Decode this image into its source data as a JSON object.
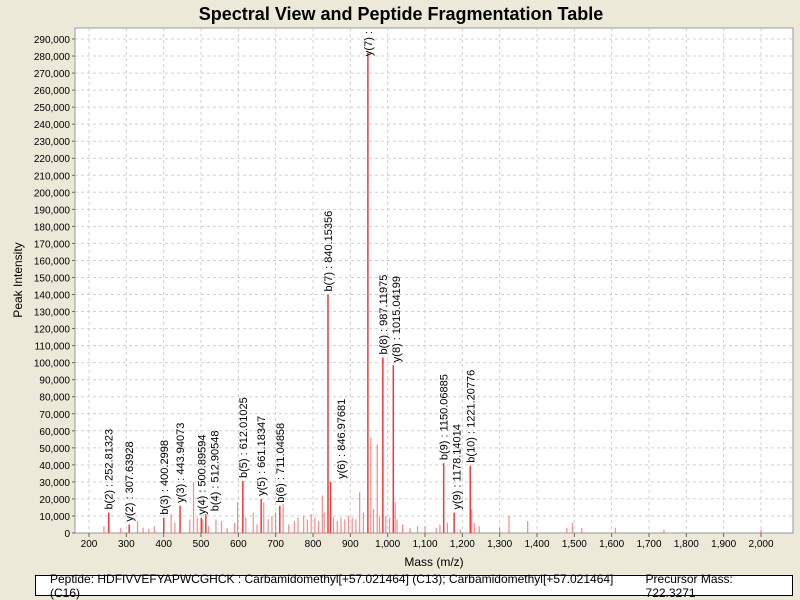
{
  "footer": {
    "peptide": "Peptide: HDFIVVEFYAPWCGHCK : Carbamidomethyl[+57.021464] (C13); Carbamidomethyl[+57.021464] (C16)",
    "precursor": "Precursor Mass: 722.3271"
  },
  "chart_data": {
    "type": "bar",
    "title": "Spectral View and Peptide Fragmentation Table",
    "xlabel": "Mass (m/z)",
    "ylabel": "Peak Intensity",
    "xlim": [
      160,
      2085
    ],
    "ylim": [
      0,
      296000
    ],
    "xticks": [
      200,
      300,
      400,
      500,
      600,
      700,
      800,
      900,
      1000,
      1100,
      1200,
      1300,
      1400,
      1500,
      1600,
      1700,
      1800,
      1900,
      2000
    ],
    "xtick_labels": [
      "200",
      "300",
      "400",
      "500",
      "600",
      "700",
      "800",
      "900",
      "1,000",
      "1,100",
      "1,200",
      "1,300",
      "1,400",
      "1,500",
      "1,600",
      "1,700",
      "1,800",
      "1,900",
      "2,000"
    ],
    "yticks": [
      0,
      10000,
      20000,
      30000,
      40000,
      50000,
      60000,
      70000,
      80000,
      90000,
      100000,
      110000,
      120000,
      130000,
      140000,
      150000,
      160000,
      170000,
      180000,
      190000,
      200000,
      210000,
      220000,
      230000,
      240000,
      250000,
      260000,
      270000,
      280000,
      290000
    ],
    "ytick_labels": [
      "0",
      "10,000",
      "20,000",
      "30,000",
      "40,000",
      "50,000",
      "60,000",
      "70,000",
      "80,000",
      "90,000",
      "100,000",
      "110,000",
      "120,000",
      "130,000",
      "140,000",
      "150,000",
      "160,000",
      "170,000",
      "180,000",
      "190,000",
      "200,000",
      "210,000",
      "220,000",
      "230,000",
      "240,000",
      "250,000",
      "260,000",
      "270,000",
      "280,000",
      "290,000"
    ],
    "grid": true,
    "colors": {
      "peak": "#FF5555",
      "annotated_peak": "#FF3333",
      "background": "#ECE9D8",
      "plot": "#FFFFFF"
    },
    "annotated_peaks": [
      {
        "mz": 252.81,
        "intensity": 12000,
        "label": "b(2) : 252.81323"
      },
      {
        "mz": 307.64,
        "intensity": 5000,
        "label": "y(2) : 307.63928"
      },
      {
        "mz": 400.3,
        "intensity": 9000,
        "label": "b(3) : 400.2998"
      },
      {
        "mz": 443.94,
        "intensity": 16000,
        "label": "y(3) : 443.94073"
      },
      {
        "mz": 500.9,
        "intensity": 9000,
        "label": "y(4) : 500.89594"
      },
      {
        "mz": 512.9,
        "intensity": 11000,
        "label": "b(4) : 512.90548"
      },
      {
        "mz": 612.01,
        "intensity": 30500,
        "label": "b(5) : 612.01025"
      },
      {
        "mz": 661.18,
        "intensity": 20000,
        "label": "y(5) : 661.18347"
      },
      {
        "mz": 711.05,
        "intensity": 16000,
        "label": "b(6) : 711.04858"
      },
      {
        "mz": 840.15,
        "intensity": 140000,
        "label": "b(7) : 840.15356"
      },
      {
        "mz": 846.98,
        "intensity": 30000,
        "label": "y(6) : 846.97681"
      },
      {
        "mz": 947.0,
        "intensity": 282000,
        "label": "y(7) :"
      },
      {
        "mz": 987.12,
        "intensity": 103000,
        "label": "b(8) : 987.11975"
      },
      {
        "mz": 1015.04,
        "intensity": 98500,
        "label": "y(8) : 1015.04199"
      },
      {
        "mz": 1150.07,
        "intensity": 41000,
        "label": "b(9) : 1150.06885"
      },
      {
        "mz": 1178.14,
        "intensity": 12000,
        "label": "y(9) : 1178.14014"
      },
      {
        "mz": 1221.21,
        "intensity": 39500,
        "label": "b(10) : 1221.20776"
      }
    ],
    "peaks": [
      [
        240,
        4000
      ],
      [
        285,
        3000
      ],
      [
        330,
        7000
      ],
      [
        345,
        3000
      ],
      [
        360,
        2500
      ],
      [
        375,
        4000
      ],
      [
        420,
        11000
      ],
      [
        430,
        6000
      ],
      [
        470,
        8000
      ],
      [
        480,
        30000
      ],
      [
        490,
        9000
      ],
      [
        505,
        8000
      ],
      [
        520,
        4000
      ],
      [
        540,
        8000
      ],
      [
        555,
        7000
      ],
      [
        570,
        3000
      ],
      [
        590,
        6000
      ],
      [
        598,
        18000
      ],
      [
        620,
        9000
      ],
      [
        640,
        12000
      ],
      [
        650,
        5000
      ],
      [
        668,
        18000
      ],
      [
        680,
        8000
      ],
      [
        690,
        10000
      ],
      [
        700,
        12000
      ],
      [
        720,
        17000
      ],
      [
        735,
        5000
      ],
      [
        750,
        7000
      ],
      [
        760,
        9000
      ],
      [
        775,
        10000
      ],
      [
        785,
        8000
      ],
      [
        795,
        11000
      ],
      [
        805,
        9000
      ],
      [
        815,
        7000
      ],
      [
        825,
        22000
      ],
      [
        830,
        12000
      ],
      [
        855,
        9000
      ],
      [
        865,
        7000
      ],
      [
        875,
        9000
      ],
      [
        885,
        8000
      ],
      [
        895,
        10000
      ],
      [
        905,
        9000
      ],
      [
        915,
        8000
      ],
      [
        925,
        24000
      ],
      [
        935,
        12000
      ],
      [
        955,
        56000
      ],
      [
        962,
        14000
      ],
      [
        972,
        52000
      ],
      [
        978,
        10000
      ],
      [
        995,
        10000
      ],
      [
        1005,
        9000
      ],
      [
        1020,
        18000
      ],
      [
        1025,
        8000
      ],
      [
        1040,
        5000
      ],
      [
        1060,
        3000
      ],
      [
        1080,
        4000
      ],
      [
        1100,
        4000
      ],
      [
        1130,
        3000
      ],
      [
        1140,
        5000
      ],
      [
        1160,
        6000
      ],
      [
        1195,
        2000
      ],
      [
        1225,
        14000
      ],
      [
        1232,
        6000
      ],
      [
        1245,
        4000
      ],
      [
        1300,
        3000
      ],
      [
        1325,
        10000
      ],
      [
        1375,
        7000
      ],
      [
        1480,
        3000
      ],
      [
        1495,
        6000
      ],
      [
        1520,
        3000
      ],
      [
        1610,
        3000
      ],
      [
        1740,
        2000
      ],
      [
        2000,
        2000
      ]
    ]
  }
}
